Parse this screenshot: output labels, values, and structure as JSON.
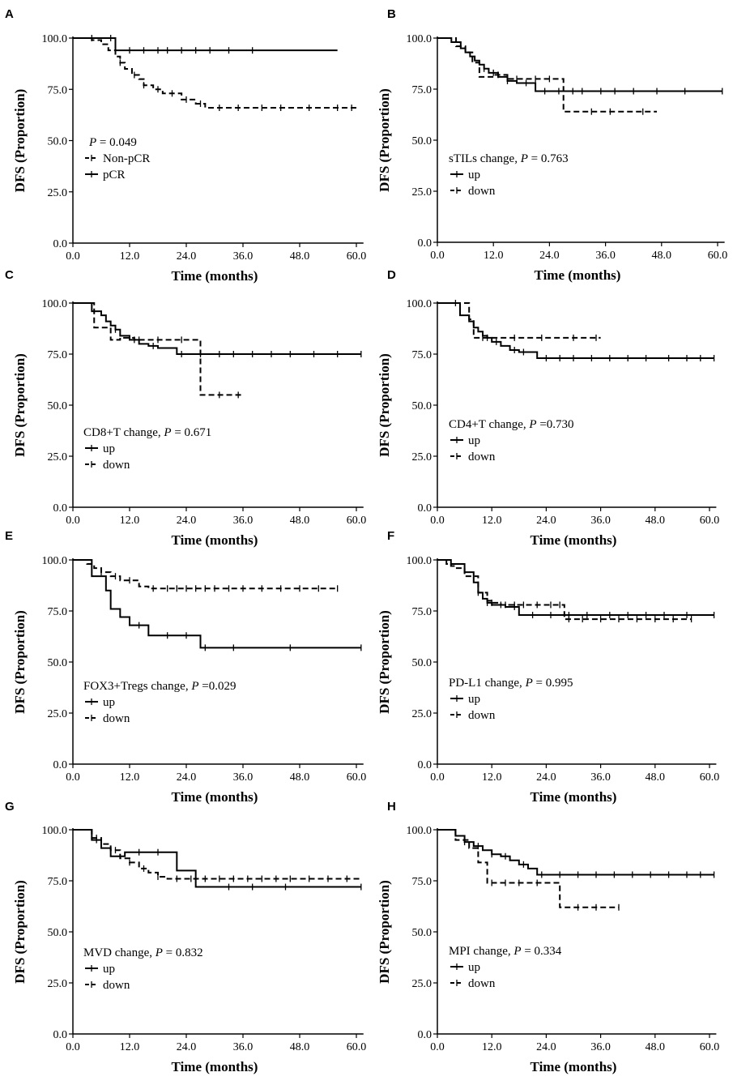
{
  "figure": {
    "x_tick_labels": [
      "0.0",
      "12.0",
      "24.0",
      "36.0",
      "48.0",
      "60.0"
    ],
    "y_tick_labels": [
      "0.0",
      "25.0",
      "50.0",
      "75.0",
      "100.0"
    ]
  },
  "chart_data": [
    {
      "type": "line",
      "panel": "A",
      "xlabel": "Time (months)",
      "ylabel": "DFS (Proportion)",
      "xlim": [
        0,
        60
      ],
      "ylim": [
        0,
        100
      ],
      "pvalue_label": "P",
      "pvalue_text": " = 0.049",
      "series": [
        {
          "name": "Non-pCR",
          "style": "dashed",
          "x": [
            0,
            4,
            6,
            7.5,
            9,
            10,
            11,
            12.5,
            14,
            15,
            17,
            19,
            23,
            26,
            28,
            60
          ],
          "y": [
            100,
            99,
            97,
            94,
            91,
            88,
            85,
            82,
            80,
            77,
            75,
            73,
            70,
            68,
            66,
            66
          ],
          "censor_x": [
            10,
            13,
            15,
            18,
            21,
            24,
            27,
            31,
            35,
            40,
            44,
            50,
            56,
            59
          ]
        },
        {
          "name": "pCR",
          "style": "solid",
          "x": [
            0,
            9,
            56
          ],
          "y": [
            100,
            94,
            94
          ],
          "censor_x": [
            4,
            8,
            12,
            15,
            18,
            20,
            23,
            26,
            29,
            33,
            38
          ]
        }
      ]
    },
    {
      "type": "line",
      "panel": "B",
      "xlabel": "Time (months)",
      "ylabel": "DFS (Proportion)",
      "xlim": [
        0,
        60
      ],
      "ylim": [
        0,
        100
      ],
      "legend_title": "sTILs change, ",
      "pvalue_label": "P",
      "pvalue_text": " = 0.763",
      "series": [
        {
          "name": "up",
          "style": "solid",
          "x": [
            0,
            3,
            5,
            6,
            7,
            8,
            9,
            10,
            11,
            13,
            15,
            17,
            21,
            61
          ],
          "y": [
            100,
            98,
            95,
            93,
            91,
            89,
            87,
            85,
            83,
            81,
            79,
            78,
            74,
            74
          ],
          "censor_x": [
            10,
            12,
            15,
            19,
            23,
            26,
            29,
            31,
            35,
            38,
            42,
            47,
            53,
            61
          ]
        },
        {
          "name": "down",
          "style": "dashed",
          "x": [
            0,
            4,
            6,
            7.5,
            9,
            12,
            15,
            26,
            27,
            47
          ],
          "y": [
            100,
            96,
            93,
            88,
            81,
            82,
            80,
            80,
            64,
            64
          ],
          "censor_x": [
            13,
            17,
            21,
            24,
            33,
            37,
            44
          ]
        }
      ]
    },
    {
      "type": "line",
      "panel": "C",
      "xlabel": "Time (months)",
      "ylabel": "DFS (Proportion)",
      "xlim": [
        0,
        60
      ],
      "ylim": [
        0,
        100
      ],
      "legend_title": "CD8+T change, ",
      "pvalue_label": "P",
      "pvalue_text": " = 0.671",
      "series": [
        {
          "name": "up",
          "style": "solid",
          "x": [
            0,
            4,
            6,
            7,
            8,
            9,
            10,
            12,
            14,
            16,
            18,
            22,
            61
          ],
          "y": [
            100,
            96,
            94,
            91,
            89,
            87,
            84,
            82,
            80,
            79,
            78,
            75,
            75
          ],
          "censor_x": [
            9,
            13,
            17,
            23,
            27,
            31,
            34,
            38,
            42,
            46,
            51,
            56,
            61
          ]
        },
        {
          "name": "down",
          "style": "dashed",
          "x": [
            0,
            4.5,
            8,
            10,
            13,
            26,
            27,
            36
          ],
          "y": [
            100,
            88,
            82,
            83,
            82,
            82,
            55,
            55
          ],
          "censor_x": [
            14,
            18,
            23,
            31,
            35
          ]
        }
      ]
    },
    {
      "type": "line",
      "panel": "D",
      "xlabel": "Time (months)",
      "ylabel": "DFS (Proportion)",
      "xlim": [
        0,
        60
      ],
      "ylim": [
        0,
        100
      ],
      "legend_title": "CD4+T change, ",
      "pvalue_label": "P",
      "pvalue_text": " =0.730",
      "series": [
        {
          "name": "up",
          "style": "solid",
          "x": [
            0,
            5,
            7,
            8,
            9,
            10,
            11,
            12,
            14,
            16,
            18,
            22,
            61
          ],
          "y": [
            100,
            94,
            91,
            88,
            86,
            84,
            83,
            81,
            79,
            77,
            76,
            73,
            73
          ],
          "censor_x": [
            11,
            13,
            17,
            19,
            24,
            27,
            30,
            34,
            38,
            42,
            46,
            51,
            55,
            58,
            61
          ]
        },
        {
          "name": "down",
          "style": "dashed",
          "x": [
            0,
            5,
            7,
            8,
            13,
            36
          ],
          "y": [
            100,
            100,
            92,
            83,
            83,
            83
          ],
          "censor_x": [
            4,
            10,
            17,
            23,
            30,
            35
          ]
        }
      ]
    },
    {
      "type": "line",
      "panel": "E",
      "xlabel": "Time (months)",
      "ylabel": "DFS (Proportion)",
      "xlim": [
        0,
        60
      ],
      "ylim": [
        0,
        100
      ],
      "legend_title": "FOX3+Tregs change, ",
      "pvalue_label": "P",
      "pvalue_text": " =0.029",
      "series": [
        {
          "name": "up",
          "style": "solid",
          "x": [
            0,
            4,
            7,
            8,
            10,
            12,
            16,
            27,
            61
          ],
          "y": [
            100,
            92,
            85,
            76,
            72,
            68,
            63,
            57,
            57
          ],
          "censor_x": [
            14,
            20,
            24,
            28,
            34,
            46,
            61
          ]
        },
        {
          "name": "down",
          "style": "dashed",
          "x": [
            0,
            3,
            4.5,
            6,
            8,
            10,
            14,
            16,
            56
          ],
          "y": [
            100,
            98,
            96,
            94,
            92,
            90,
            87,
            86,
            86
          ],
          "censor_x": [
            6,
            9,
            12,
            17,
            20,
            22,
            24,
            26,
            28,
            30,
            33,
            36,
            40,
            44,
            48,
            52,
            56
          ]
        }
      ]
    },
    {
      "type": "line",
      "panel": "F",
      "xlabel": "Time (months)",
      "ylabel": "DFS (Proportion)",
      "xlim": [
        0,
        60
      ],
      "ylim": [
        0,
        100
      ],
      "legend_title": "PD-L1 change, ",
      "pvalue_label": "P",
      "pvalue_text": " = 0.995",
      "series": [
        {
          "name": "up",
          "style": "solid",
          "x": [
            0,
            3,
            6,
            8,
            9,
            10,
            11,
            12,
            15,
            18,
            61
          ],
          "y": [
            100,
            98,
            94,
            89,
            84,
            81,
            79,
            78,
            77,
            73,
            73
          ],
          "censor_x": [
            11,
            14,
            17,
            21,
            25,
            29,
            33,
            38,
            42,
            46,
            50,
            55,
            61
          ]
        },
        {
          "name": "down",
          "style": "dashed",
          "x": [
            0,
            2,
            3,
            4,
            6,
            9,
            11,
            12,
            14,
            18,
            26,
            28,
            56
          ],
          "y": [
            100,
            98,
            97,
            96,
            92,
            84,
            80,
            79,
            78,
            78,
            78,
            71,
            71
          ],
          "censor_x": [
            9,
            12,
            15,
            17,
            19,
            22,
            25,
            27,
            29,
            32,
            36,
            40,
            44,
            48,
            52,
            56
          ]
        }
      ]
    },
    {
      "type": "line",
      "panel": "G",
      "xlabel": "Time (months)",
      "ylabel": "DFS (Proportion)",
      "xlim": [
        0,
        60
      ],
      "ylim": [
        0,
        100
      ],
      "legend_title": "MVD change, ",
      "pvalue_label": "P",
      "pvalue_text": " = 0.832",
      "series": [
        {
          "name": "up",
          "style": "solid",
          "x": [
            0,
            4,
            6,
            8,
            11,
            22,
            25,
            26,
            61
          ],
          "y": [
            100,
            95,
            91,
            87,
            89,
            80,
            80,
            72,
            72
          ],
          "censor_x": [
            5,
            14,
            18,
            33,
            38,
            45,
            61
          ]
        },
        {
          "name": "down",
          "style": "dashed",
          "x": [
            0,
            4,
            6,
            8,
            10,
            12,
            14,
            16,
            18,
            20,
            61
          ],
          "y": [
            100,
            96,
            93,
            90,
            86,
            84,
            81,
            79,
            77,
            76,
            76
          ],
          "censor_x": [
            5,
            9,
            12,
            15,
            18,
            22,
            25,
            28,
            31,
            34,
            37,
            40,
            43,
            46,
            50,
            54,
            58
          ]
        }
      ]
    },
    {
      "type": "line",
      "panel": "H",
      "xlabel": "Time (months)",
      "ylabel": "DFS (Proportion)",
      "xlim": [
        0,
        60
      ],
      "ylim": [
        0,
        100
      ],
      "legend_title": "MPI change, ",
      "pvalue_label": "P",
      "pvalue_text": " = 0.334",
      "series": [
        {
          "name": "up",
          "style": "solid",
          "x": [
            0,
            4,
            6,
            8,
            10,
            12,
            14,
            16,
            18,
            20,
            22,
            61
          ],
          "y": [
            100,
            97,
            94,
            92,
            90,
            88,
            87,
            85,
            83,
            81,
            78,
            78
          ],
          "censor_x": [
            6,
            9,
            12,
            15,
            19,
            23,
            27,
            31,
            35,
            39,
            43,
            47,
            51,
            55,
            58,
            61
          ]
        },
        {
          "name": "down",
          "style": "dashed",
          "x": [
            0,
            4,
            7,
            9,
            11,
            26,
            27,
            40
          ],
          "y": [
            100,
            95,
            91,
            84,
            74,
            74,
            62,
            62
          ],
          "censor_x": [
            12,
            15,
            18,
            22,
            31,
            35,
            40
          ]
        }
      ]
    }
  ]
}
